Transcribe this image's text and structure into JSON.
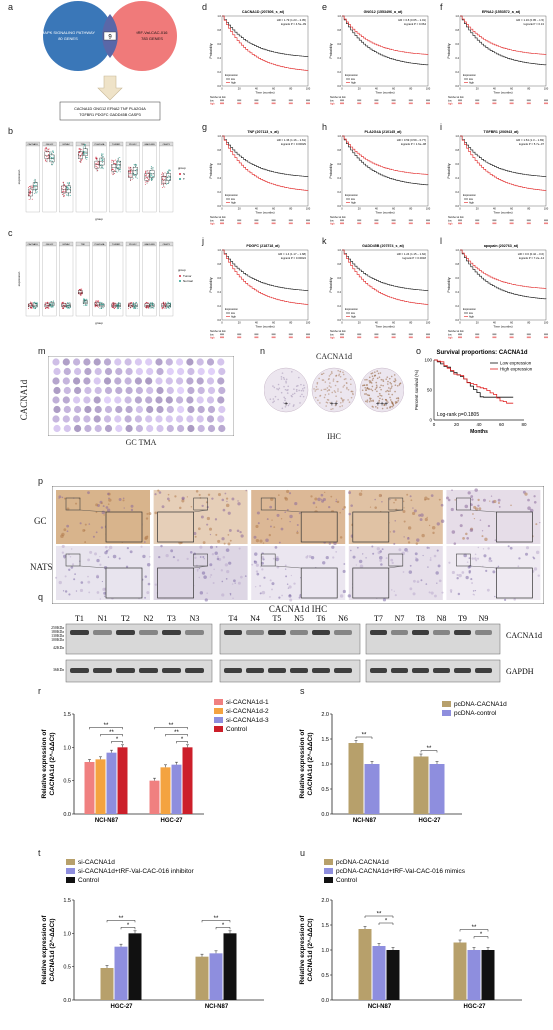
{
  "panels": {
    "a": "a",
    "b": "b",
    "c": "c",
    "d": "d",
    "e": "e",
    "f": "f",
    "g": "g",
    "h": "h",
    "i": "i",
    "j": "j",
    "k": "k",
    "l": "l",
    "m": "m",
    "n": "n",
    "o": "o",
    "p": "p",
    "q": "q",
    "r": "r",
    "s": "s",
    "t": "t",
    "u": "u"
  },
  "venn": {
    "left": "MAPK SIGNALING PATHWAY\n80 GENES",
    "left_line1": "MAPK SIGNALING PATHWAY",
    "left_line2": "80 GENES",
    "right_line1": "tRF-Val-CAC-016",
    "right_line2": "783 GENES",
    "overlap": "9",
    "result_line1": "CACNA1D  GNG12  EFNA2  TNF  PLA2G4A",
    "result_line2": "TGFBR1  PDGFC  GADD45B  CASP3",
    "color_left": "#3a77b8",
    "color_right": "#f07a7a"
  },
  "km_panels": [
    {
      "letter": "d",
      "gene": "CACNA1D (207806_s_at)",
      "hr": "HR = 1.79 (1.23 – 2.05)",
      "p": "logrank P = 4.5e−09"
    },
    {
      "letter": "e",
      "gene": "GNG12 (1553496_a_at)",
      "hr": "HR = 0.8 (0.65 – 1.01)",
      "p": "logrank P = 0.064"
    },
    {
      "letter": "f",
      "gene": "EFNA2 (1553572_a_at)",
      "hr": "HR = 1.16 (0.95 – 1.5)",
      "p": "logrank P = 0.13"
    },
    {
      "letter": "g",
      "gene": "TNF (207113_s_at)",
      "hr": "HR = 1.36 (1.16 – 1.61)",
      "p": "logrank P = 0.00029"
    },
    {
      "letter": "h",
      "gene": "PLA2G4A (210145_at)",
      "hr": "HR = 0.59 (0.59 – 0.77)",
      "p": "logrank P = 1.6e−08"
    },
    {
      "letter": "i",
      "gene": "TGFBR1 (206943_at)",
      "hr": "HR = 1.54 (1.3 – 1.83)",
      "p": "logrank P = 5.7e−07"
    },
    {
      "letter": "j",
      "gene": "PDGFC (218718_at)",
      "hr": "HR = 1.4 (1.17 – 1.68)",
      "p": "logrank P = 0.00024"
    },
    {
      "letter": "k",
      "gene": "GADD45B (207574_s_at)",
      "hr": "HR = 1.24 (1.15 – 1.62)",
      "p": "logrank P = 0.0018"
    },
    {
      "letter": "l",
      "gene": "apopain (202763_at)",
      "hr": "HR = 0.6 (0.42 – 0.6)",
      "p": "logrank P = 7.2e−14"
    }
  ],
  "km_common": {
    "ylab": "Probability",
    "xlab": "Time (months)",
    "expr": "Expression",
    "low": "low",
    "high": "high",
    "risk": "Number at risk",
    "xticks": [
      "0",
      "20",
      "40",
      "60",
      "80",
      "100"
    ],
    "yticks": [
      "0.0",
      "0.2",
      "0.4",
      "0.6",
      "0.8",
      "1.0"
    ]
  },
  "box": {
    "b_legend_title": "group",
    "c_legend_title": "group",
    "b_legend": [
      "N",
      "T"
    ],
    "c_legend": [
      "Tumor",
      "Normal"
    ],
    "genes": [
      "CACNA1D",
      "GNG12",
      "EFNA2",
      "TNF",
      "PLA2G4A",
      "TGFBR1",
      "PDGFC",
      "GADD45B",
      "CASP3"
    ],
    "xlab": "group"
  },
  "tma": {
    "vertical": "CACNA1d",
    "caption": "GC TMA"
  },
  "ihc_n": {
    "title": "CACNA1d",
    "caption": "IHC",
    "scores": [
      "+",
      "++",
      "+++"
    ]
  },
  "survival_o": {
    "title": "Survival proportions: CACNA1d",
    "ylab": "Percent survival (%)",
    "xlab": "Months",
    "low": "Low expression",
    "high": "High expression",
    "stat": "Log-rank p=0.1805",
    "xticks": [
      "0",
      "20",
      "40",
      "60",
      "80"
    ],
    "yticks": [
      "0",
      "50",
      "100"
    ]
  },
  "ihc_p": {
    "row1": "GC",
    "row2": "NATS",
    "caption": "CACNA1d IHC"
  },
  "wb": {
    "lanes_g1": [
      "T1",
      "N1",
      "T2",
      "N2",
      "T3",
      "N3"
    ],
    "lanes_g2": [
      "T4",
      "N4",
      "T5",
      "N5",
      "T6",
      "N6"
    ],
    "lanes_g3": [
      "T7",
      "N7",
      "T8",
      "N8",
      "T9",
      "N9"
    ],
    "target": "CACNA1d",
    "control": "GAPDH",
    "markers": [
      "250KDa",
      "180KDa",
      "130KDa",
      "100KDa",
      "42KDa",
      "36KDa"
    ]
  },
  "bar_common": {
    "ylab1": "Relative expression of",
    "ylab2": "CACNA1d (2^-ΔΔCt)",
    "sig2": "**",
    "sig1": "*"
  },
  "bar_r": {
    "categories": [
      "NCI-N87",
      "HGC-27"
    ],
    "series": [
      {
        "name": "si-CACNA1d-1",
        "color": "#f08080",
        "values": [
          0.78,
          0.5
        ]
      },
      {
        "name": "si-CACNA1d-2",
        "color": "#f4a340",
        "values": [
          0.82,
          0.7
        ]
      },
      {
        "name": "si-CACNA1d-3",
        "color": "#8e8ede",
        "values": [
          0.92,
          0.74
        ]
      },
      {
        "name": "Control",
        "color": "#cc1f2a",
        "values": [
          1.0,
          1.0
        ]
      }
    ],
    "yticks": [
      "0.0",
      "0.5",
      "1.0",
      "1.5"
    ]
  },
  "bar_s": {
    "categories": [
      "NCI-N87",
      "HGC-27"
    ],
    "series": [
      {
        "name": "pcDNA-CACNA1d",
        "color": "#b7a06b",
        "values": [
          1.42,
          1.15
        ]
      },
      {
        "name": "pcDNA-control",
        "color": "#8e8ede",
        "values": [
          1.0,
          1.0
        ]
      }
    ],
    "yticks": [
      "0.0",
      "0.5",
      "1.0",
      "1.5",
      "2.0"
    ]
  },
  "bar_t": {
    "categories": [
      "HGC-27",
      "NCI-N87"
    ],
    "series": [
      {
        "name": "si-CACNA1d",
        "color": "#b7a06b",
        "values": [
          0.48,
          0.65
        ]
      },
      {
        "name": "si-CACNA1d+tRF-Val-CAC-016 inhibitor",
        "color": "#8e8ede",
        "values": [
          0.8,
          0.7
        ]
      },
      {
        "name": "Control",
        "color": "#111111",
        "values": [
          1.0,
          1.0
        ]
      }
    ],
    "yticks": [
      "0.0",
      "0.5",
      "1.0",
      "1.5"
    ]
  },
  "bar_u": {
    "categories": [
      "NCI-N87",
      "HGC-27"
    ],
    "series": [
      {
        "name": "pcDNA-CACNA1d",
        "color": "#b7a06b",
        "values": [
          1.42,
          1.15
        ]
      },
      {
        "name": "pcDNA-CACNA1d+tRF-Val-CAC-016 mimics",
        "color": "#8e8ede",
        "values": [
          1.08,
          1.0
        ]
      },
      {
        "name": "Control",
        "color": "#111111",
        "values": [
          1.0,
          1.0
        ]
      }
    ],
    "yticks": [
      "0.0",
      "0.5",
      "1.0",
      "1.5",
      "2.0"
    ]
  }
}
